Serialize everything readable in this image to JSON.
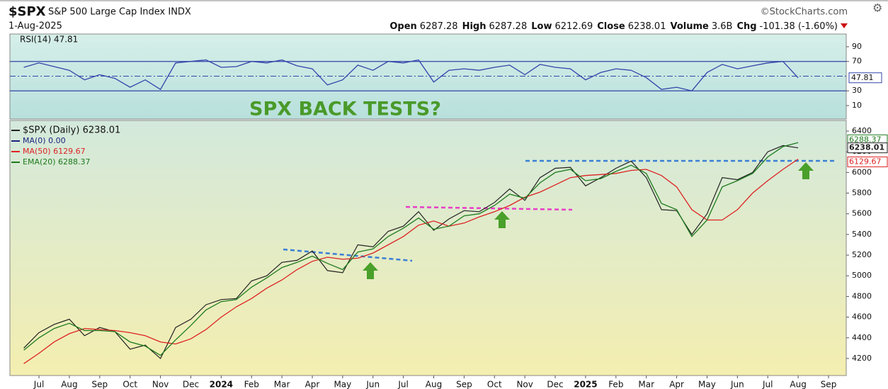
{
  "header": {
    "symbol": "$SPX",
    "name": "S&P 500 Large Cap Index INDX",
    "source": "©StockCharts.com",
    "date": "1-Aug-2025",
    "quote": [
      {
        "label": "Open",
        "value": "6287.28"
      },
      {
        "label": "High",
        "value": "6287.28"
      },
      {
        "label": "Low",
        "value": "6212.69"
      },
      {
        "label": "Close",
        "value": "6238.01"
      },
      {
        "label": "Volume",
        "value": "3.6B"
      },
      {
        "label": "Chg",
        "value": "-101.38 (-1.60%)"
      }
    ]
  },
  "chart_data": [
    {
      "type": "line",
      "title": "RSI(14) 47.81",
      "series": [
        {
          "name": "RSI(14)",
          "color": "#3344aa",
          "values": [
            62,
            68,
            63,
            58,
            45,
            52,
            47,
            35,
            45,
            32,
            68,
            70,
            72,
            62,
            63,
            70,
            68,
            72,
            64,
            60,
            38,
            45,
            65,
            58,
            70,
            68,
            72,
            42,
            58,
            60,
            58,
            62,
            65,
            52,
            66,
            62,
            60,
            45,
            55,
            60,
            58,
            48,
            32,
            35,
            30,
            55,
            66,
            60,
            64,
            68,
            70,
            47.81,
            null,
            null
          ]
        }
      ],
      "ylim": [
        -8.3,
        107.3
      ],
      "yticks": [
        10,
        30,
        70,
        90
      ],
      "bands": [
        30,
        70
      ],
      "midline": 50
    },
    {
      "type": "line",
      "annotation": "SPX BACK TESTS?",
      "categories": [
        null,
        "Jul",
        null,
        "Aug",
        null,
        "Sep",
        null,
        "Oct",
        null,
        "Nov",
        null,
        "Dec",
        null,
        "2024",
        null,
        "Feb",
        null,
        "Mar",
        null,
        "Apr",
        null,
        "May",
        null,
        "Jun",
        null,
        "Jul",
        null,
        "Aug",
        null,
        "Sep",
        null,
        "Oct",
        null,
        "Nov",
        null,
        "Dec",
        null,
        "2025",
        null,
        "Feb",
        null,
        "Mar",
        null,
        "Apr",
        null,
        "May",
        null,
        "Jun",
        null,
        "Jul",
        null,
        "Aug",
        null,
        "Sep"
      ],
      "series": [
        {
          "name": "$SPX (Daily) 6238.01",
          "color": "#222222",
          "values": [
            4300,
            4450,
            4530,
            4580,
            4420,
            4500,
            4460,
            4290,
            4330,
            4200,
            4500,
            4580,
            4720,
            4770,
            4780,
            4950,
            5000,
            5130,
            5150,
            5240,
            5050,
            5030,
            5300,
            5280,
            5430,
            5480,
            5620,
            5440,
            5550,
            5630,
            5620,
            5710,
            5840,
            5730,
            5950,
            6040,
            6050,
            5870,
            5950,
            6040,
            6110,
            5950,
            5640,
            5630,
            5400,
            5600,
            5950,
            5930,
            6000,
            6200,
            6260,
            6238.01,
            null,
            null
          ]
        },
        {
          "name": "MA(50) 6129.67",
          "color": "#dd2222",
          "values": [
            4150,
            4250,
            4360,
            4440,
            4490,
            4480,
            4470,
            4450,
            4420,
            4360,
            4340,
            4390,
            4480,
            4600,
            4700,
            4780,
            4880,
            4960,
            5060,
            5140,
            5180,
            5160,
            5170,
            5220,
            5300,
            5380,
            5490,
            5530,
            5480,
            5510,
            5570,
            5620,
            5680,
            5760,
            5810,
            5880,
            5950,
            5970,
            5980,
            5990,
            6020,
            6030,
            5970,
            5860,
            5640,
            5540,
            5540,
            5640,
            5800,
            5920,
            6030,
            6129.67,
            null,
            null
          ]
        },
        {
          "name": "EMA(20) 6288.37",
          "color": "#1e7a1e",
          "values": [
            4280,
            4400,
            4490,
            4540,
            4470,
            4470,
            4460,
            4360,
            4320,
            4230,
            4380,
            4520,
            4670,
            4750,
            4770,
            4890,
            4980,
            5080,
            5130,
            5190,
            5120,
            5060,
            5230,
            5260,
            5380,
            5460,
            5560,
            5450,
            5480,
            5580,
            5600,
            5680,
            5790,
            5750,
            5900,
            6000,
            6030,
            5920,
            5940,
            6010,
            6070,
            5990,
            5700,
            5640,
            5380,
            5540,
            5860,
            5920,
            5990,
            6150,
            6250,
            6288.37,
            null,
            null
          ]
        }
      ],
      "legend_extra": {
        "text": "MA(0) 0.00",
        "color": "#1a237e"
      },
      "ylim": [
        4035,
        6503
      ],
      "yticks": [
        4200,
        4400,
        4600,
        4800,
        5000,
        5200,
        5400,
        5600,
        5800,
        6000,
        6200,
        6400
      ]
    }
  ]
}
